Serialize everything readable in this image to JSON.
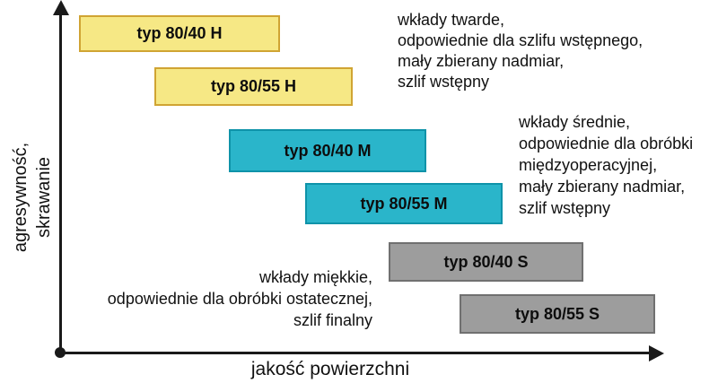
{
  "chart_data": {
    "type": "bar",
    "variant": "qualitative-overlapping-range-chart",
    "title": "",
    "xlabel": "jakość powierzchni",
    "ylabel": "agresywność,\nskrawanie",
    "axes": {
      "x_ticks": [],
      "y_ticks": [],
      "grid": false,
      "x_qualitative": "surface quality increases to the right",
      "y_qualitative": "aggressiveness / cutting increases upward"
    },
    "bars": [
      {
        "label": "typ 80/40 H",
        "row": 1,
        "x_start_pct": 3.0,
        "x_end_pct": 36.4,
        "fill": "#f6e885",
        "border": "#d0a433"
      },
      {
        "label": "typ 80/55 H",
        "row": 2,
        "x_start_pct": 15.5,
        "x_end_pct": 48.5,
        "fill": "#f6e885",
        "border": "#d0a433"
      },
      {
        "label": "typ 80/40 M",
        "row": 3,
        "x_start_pct": 27.9,
        "x_end_pct": 60.7,
        "fill": "#2ab5ca",
        "border": "#0e93a9"
      },
      {
        "label": "typ 80/55 M",
        "row": 4,
        "x_start_pct": 40.6,
        "x_end_pct": 73.4,
        "fill": "#2ab5ca",
        "border": "#0e93a9"
      },
      {
        "label": "typ 80/40 S",
        "row": 5,
        "x_start_pct": 54.5,
        "x_end_pct": 86.8,
        "fill": "#9d9d9d",
        "border": "#707070"
      },
      {
        "label": "typ 80/55 S",
        "row": 6,
        "x_start_pct": 66.4,
        "x_end_pct": 98.8,
        "fill": "#9d9d9d",
        "border": "#707070"
      }
    ],
    "annotations": [
      {
        "id": "hard",
        "align": "left",
        "text": "wkłady twarde,\nodpowiednie dla szlifu wstępnego,\nmały zbierany nadmiar,\nszlif wstępny"
      },
      {
        "id": "medium",
        "align": "left",
        "text": "wkłady średnie,\nodpowiednie dla obróbki\nmiędzyoperacyjnej,\nmały zbierany nadmiar,\nszlif wstępny"
      },
      {
        "id": "soft",
        "align": "right",
        "text": "wkłady miękkie,\nodpowiednie dla obróbki ostatecznej,\nszlif finalny"
      }
    ],
    "legend": {
      "shown": false
    },
    "colors": {
      "background": "#ffffff",
      "axis": "#1a1a1a",
      "text": "#111111",
      "hard_fill": "#f6e885",
      "hard_border": "#d0a433",
      "medium_fill": "#2ab5ca",
      "medium_border": "#0e93a9",
      "soft_fill": "#9d9d9d",
      "soft_border": "#707070"
    }
  }
}
